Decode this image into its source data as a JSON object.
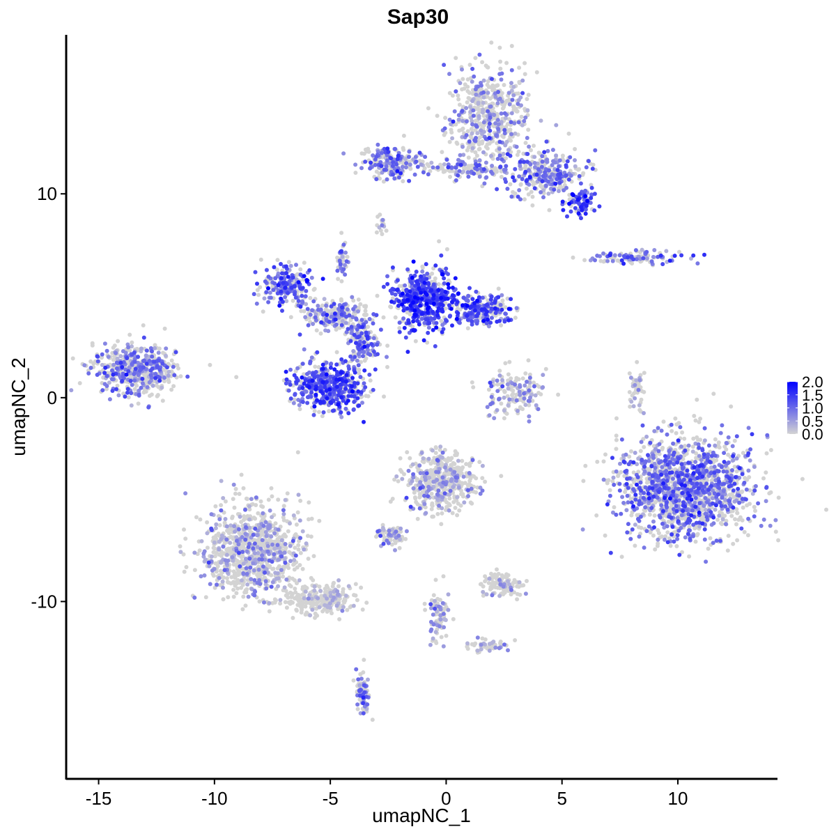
{
  "chart_data": {
    "type": "scatter",
    "title": "Sap30",
    "xlabel": "umapNC_1",
    "ylabel": "umapNC_2",
    "xlim": [
      -16.4,
      14.3
    ],
    "ylim": [
      -18.7,
      17.8
    ],
    "xticks": [
      -15,
      -10,
      -5,
      0,
      5,
      10
    ],
    "xtick_labels": [
      "-15",
      "-10",
      "-5",
      "0",
      "5",
      "10"
    ],
    "yticks": [
      -10,
      0,
      10
    ],
    "ytick_labels": [
      "-10",
      "0",
      "10"
    ],
    "grid": false,
    "legend": {
      "placement": "right",
      "type": "colorbar",
      "range": [
        0,
        2.0
      ],
      "ticks": [
        0,
        0.5,
        1.0,
        1.5,
        2.0
      ],
      "tick_labels": [
        "0.0",
        "0.5",
        "1.0",
        "1.5",
        "2.0"
      ],
      "low_color": "#D3D3D3",
      "high_color": "#0000FF"
    },
    "clusters": [
      {
        "x": 1.8,
        "y": 13.8,
        "sx": 1.2,
        "sy": 1.5,
        "n": 500,
        "expr": 0.6
      },
      {
        "x": 4.2,
        "y": 11.0,
        "sx": 1.2,
        "sy": 0.8,
        "n": 300,
        "expr": 0.9
      },
      {
        "x": 5.8,
        "y": 9.6,
        "sx": 0.4,
        "sy": 0.4,
        "n": 80,
        "expr": 1.3
      },
      {
        "x": -2.4,
        "y": 11.5,
        "sx": 0.9,
        "sy": 0.5,
        "n": 200,
        "expr": 0.9
      },
      {
        "x": 0.7,
        "y": 11.2,
        "sx": 1.0,
        "sy": 0.3,
        "n": 100,
        "expr": 0.8
      },
      {
        "x": -2.8,
        "y": 8.6,
        "sx": 0.15,
        "sy": 0.3,
        "n": 15,
        "expr": 0.7
      },
      {
        "x": -0.9,
        "y": 4.8,
        "sx": 0.9,
        "sy": 1.0,
        "n": 500,
        "expr": 1.3
      },
      {
        "x": 1.5,
        "y": 4.3,
        "sx": 0.9,
        "sy": 0.5,
        "n": 250,
        "expr": 1.2
      },
      {
        "x": -6.9,
        "y": 5.5,
        "sx": 0.7,
        "sy": 0.6,
        "n": 200,
        "expr": 1.1
      },
      {
        "x": -4.8,
        "y": 4.1,
        "sx": 0.9,
        "sy": 0.5,
        "n": 200,
        "expr": 0.8
      },
      {
        "x": -5.1,
        "y": 0.55,
        "sx": 1.1,
        "sy": 0.8,
        "n": 450,
        "expr": 1.2
      },
      {
        "x": -3.6,
        "y": 2.8,
        "sx": 0.5,
        "sy": 0.8,
        "n": 150,
        "expr": 1.0
      },
      {
        "x": -4.5,
        "y": 6.9,
        "sx": 0.15,
        "sy": 0.6,
        "n": 40,
        "expr": 0.9
      },
      {
        "x": -13.4,
        "y": 1.4,
        "sx": 1.2,
        "sy": 0.8,
        "n": 500,
        "expr": 0.8
      },
      {
        "x": 3.0,
        "y": 0.2,
        "sx": 0.9,
        "sy": 0.8,
        "n": 150,
        "expr": 0.7
      },
      {
        "x": 8.2,
        "y": 6.9,
        "sx": 1.3,
        "sy": 0.2,
        "n": 120,
        "expr": 0.9
      },
      {
        "x": 8.2,
        "y": 0.4,
        "sx": 0.2,
        "sy": 0.8,
        "n": 40,
        "expr": 0.5
      },
      {
        "x": 10.3,
        "y": -4.4,
        "sx": 1.9,
        "sy": 1.6,
        "n": 1500,
        "expr": 0.9
      },
      {
        "x": -8.4,
        "y": -7.5,
        "sx": 1.4,
        "sy": 1.5,
        "n": 900,
        "expr": 0.5
      },
      {
        "x": -5.4,
        "y": -9.9,
        "sx": 1.0,
        "sy": 0.5,
        "n": 250,
        "expr": 0.3
      },
      {
        "x": -3.6,
        "y": -14.5,
        "sx": 0.2,
        "sy": 0.8,
        "n": 70,
        "expr": 0.8
      },
      {
        "x": -0.3,
        "y": -4.1,
        "sx": 1.0,
        "sy": 1.0,
        "n": 450,
        "expr": 0.5
      },
      {
        "x": -2.4,
        "y": -6.8,
        "sx": 0.4,
        "sy": 0.3,
        "n": 80,
        "expr": 0.6
      },
      {
        "x": 2.4,
        "y": -9.2,
        "sx": 0.6,
        "sy": 0.4,
        "n": 120,
        "expr": 0.3
      },
      {
        "x": -0.3,
        "y": -10.8,
        "sx": 0.3,
        "sy": 1.0,
        "n": 80,
        "expr": 0.6
      },
      {
        "x": 1.8,
        "y": -12.2,
        "sx": 0.8,
        "sy": 0.2,
        "n": 50,
        "expr": 0.6
      }
    ]
  }
}
